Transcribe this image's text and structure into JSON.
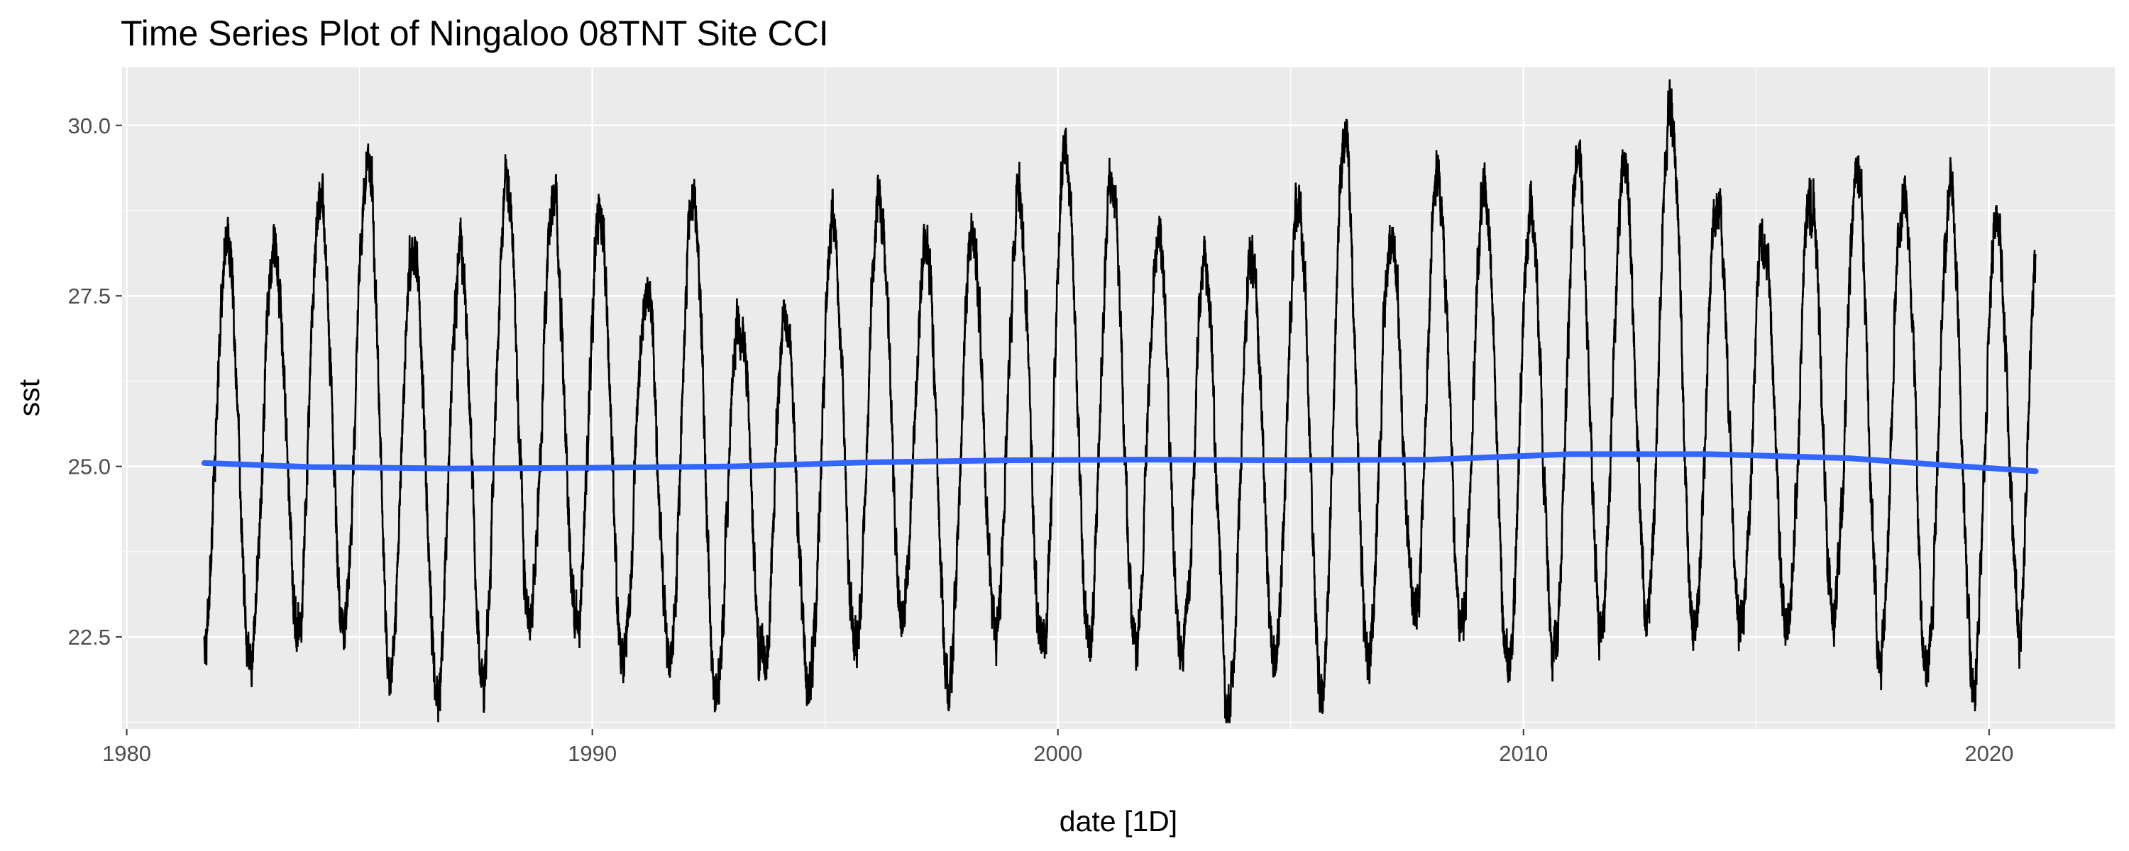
{
  "chart_data": {
    "type": "line",
    "title": "Time Series Plot of Ningaloo 08TNT Site CCI",
    "xlabel": "date [1D]",
    "ylabel": "sst",
    "xlim": [
      1979.9,
      2022.7
    ],
    "ylim": [
      21.15,
      30.85
    ],
    "x_ticks": [
      1980,
      1990,
      2000,
      2010,
      2020
    ],
    "y_ticks": [
      22.5,
      25.0,
      27.5,
      30.0
    ],
    "x_tick_labels": [
      "1980",
      "1990",
      "2000",
      "2010",
      "2020"
    ],
    "y_tick_labels": [
      "22.5",
      "25.0",
      "27.5",
      "30.0"
    ],
    "grid": true,
    "legend": "none",
    "colors": {
      "panel": "#ebebeb",
      "grid": "#ffffff",
      "sst_line": "#000000",
      "trend_line": "#3366ff",
      "trend_ribbon": "#b3b3b3"
    },
    "series": [
      {
        "kind": "seasonal",
        "start": "1981-09-01",
        "end": "2021-01-01",
        "annual_peaks": [
          {
            "date": "1982-03-01",
            "sst": 28.4
          },
          {
            "date": "1983-03-01",
            "sst": 28.3
          },
          {
            "date": "1984-03-01",
            "sst": 28.9
          },
          {
            "date": "1985-03-01",
            "sst": 29.7
          },
          {
            "date": "1986-03-01",
            "sst": 28.4
          },
          {
            "date": "1987-03-01",
            "sst": 28.2
          },
          {
            "date": "1988-03-01",
            "sst": 29.2
          },
          {
            "date": "1989-03-01",
            "sst": 28.9
          },
          {
            "date": "1990-03-01",
            "sst": 28.6
          },
          {
            "date": "1991-03-01",
            "sst": 27.5
          },
          {
            "date": "1992-03-01",
            "sst": 28.9
          },
          {
            "date": "1993-03-01",
            "sst": 27.2
          },
          {
            "date": "1994-03-01",
            "sst": 27.0
          },
          {
            "date": "1995-03-01",
            "sst": 28.5
          },
          {
            "date": "1996-03-01",
            "sst": 28.9
          },
          {
            "date": "1997-03-01",
            "sst": 28.2
          },
          {
            "date": "1998-03-01",
            "sst": 28.5
          },
          {
            "date": "1999-03-01",
            "sst": 29.1
          },
          {
            "date": "2000-03-01",
            "sst": 29.7
          },
          {
            "date": "2001-03-01",
            "sst": 29.3
          },
          {
            "date": "2002-03-01",
            "sst": 28.5
          },
          {
            "date": "2003-03-01",
            "sst": 28.0
          },
          {
            "date": "2004-03-01",
            "sst": 28.0
          },
          {
            "date": "2005-03-01",
            "sst": 28.9
          },
          {
            "date": "2006-03-01",
            "sst": 29.7
          },
          {
            "date": "2007-03-01",
            "sst": 28.5
          },
          {
            "date": "2008-03-01",
            "sst": 29.3
          },
          {
            "date": "2009-03-01",
            "sst": 29.0
          },
          {
            "date": "2010-03-01",
            "sst": 28.7
          },
          {
            "date": "2011-03-01",
            "sst": 29.3
          },
          {
            "date": "2012-03-01",
            "sst": 29.4
          },
          {
            "date": "2013-03-01",
            "sst": 30.4
          },
          {
            "date": "2014-03-01",
            "sst": 28.9
          },
          {
            "date": "2015-03-01",
            "sst": 28.3
          },
          {
            "date": "2016-03-01",
            "sst": 29.0
          },
          {
            "date": "2017-03-01",
            "sst": 29.4
          },
          {
            "date": "2018-03-01",
            "sst": 29.3
          },
          {
            "date": "2019-03-01",
            "sst": 29.2
          },
          {
            "date": "2020-03-01",
            "sst": 28.7
          },
          {
            "date": "2021-01-01",
            "sst": 28.0
          }
        ],
        "annual_troughs": [
          {
            "date": "1981-09-01",
            "sst": 22.3
          },
          {
            "date": "1982-09-01",
            "sst": 22.0
          },
          {
            "date": "1983-09-01",
            "sst": 22.6
          },
          {
            "date": "1984-09-01",
            "sst": 22.6
          },
          {
            "date": "1985-09-01",
            "sst": 22.3
          },
          {
            "date": "1986-09-01",
            "sst": 21.5
          },
          {
            "date": "1987-09-01",
            "sst": 22.0
          },
          {
            "date": "1988-09-01",
            "sst": 22.7
          },
          {
            "date": "1989-09-01",
            "sst": 22.6
          },
          {
            "date": "1990-09-01",
            "sst": 22.1
          },
          {
            "date": "1991-09-01",
            "sst": 22.0
          },
          {
            "date": "1992-09-01",
            "sst": 21.6
          },
          {
            "date": "1993-09-01",
            "sst": 22.2
          },
          {
            "date": "1994-09-01",
            "sst": 21.8
          },
          {
            "date": "1995-09-01",
            "sst": 22.4
          },
          {
            "date": "1996-09-01",
            "sst": 22.9
          },
          {
            "date": "1997-09-01",
            "sst": 21.8
          },
          {
            "date": "1998-09-01",
            "sst": 22.6
          },
          {
            "date": "1999-09-01",
            "sst": 22.3
          },
          {
            "date": "2000-09-01",
            "sst": 22.5
          },
          {
            "date": "2001-09-01",
            "sst": 22.5
          },
          {
            "date": "2002-09-01",
            "sst": 22.2
          },
          {
            "date": "2003-09-01",
            "sst": 21.4
          },
          {
            "date": "2004-09-01",
            "sst": 22.1
          },
          {
            "date": "2005-09-01",
            "sst": 21.8
          },
          {
            "date": "2006-09-01",
            "sst": 22.2
          },
          {
            "date": "2007-09-01",
            "sst": 22.7
          },
          {
            "date": "2008-09-01",
            "sst": 22.6
          },
          {
            "date": "2009-09-01",
            "sst": 22.2
          },
          {
            "date": "2010-09-01",
            "sst": 22.4
          },
          {
            "date": "2011-09-01",
            "sst": 22.7
          },
          {
            "date": "2012-09-01",
            "sst": 22.9
          },
          {
            "date": "2013-09-01",
            "sst": 22.6
          },
          {
            "date": "2014-09-01",
            "sst": 22.6
          },
          {
            "date": "2015-09-01",
            "sst": 22.5
          },
          {
            "date": "2016-09-01",
            "sst": 22.8
          },
          {
            "date": "2017-09-01",
            "sst": 22.3
          },
          {
            "date": "2018-09-01",
            "sst": 21.9
          },
          {
            "date": "2019-09-01",
            "sst": 22.0
          },
          {
            "date": "2020-09-01",
            "sst": 22.7
          }
        ]
      },
      {
        "kind": "trend",
        "points": [
          {
            "date": "1981-09-01",
            "sst": 25.05
          },
          {
            "date": "1984-01-01",
            "sst": 24.99
          },
          {
            "date": "1987-01-01",
            "sst": 24.97
          },
          {
            "date": "1990-01-01",
            "sst": 24.98
          },
          {
            "date": "1993-01-01",
            "sst": 25.0
          },
          {
            "date": "1996-01-01",
            "sst": 25.06
          },
          {
            "date": "1999-01-01",
            "sst": 25.09
          },
          {
            "date": "2002-01-01",
            "sst": 25.1
          },
          {
            "date": "2005-01-01",
            "sst": 25.09
          },
          {
            "date": "2008-01-01",
            "sst": 25.1
          },
          {
            "date": "2011-01-01",
            "sst": 25.18
          },
          {
            "date": "2014-01-01",
            "sst": 25.18
          },
          {
            "date": "2017-01-01",
            "sst": 25.12
          },
          {
            "date": "2019-01-01",
            "sst": 25.02
          },
          {
            "date": "2021-01-01",
            "sst": 24.93
          }
        ]
      }
    ]
  }
}
